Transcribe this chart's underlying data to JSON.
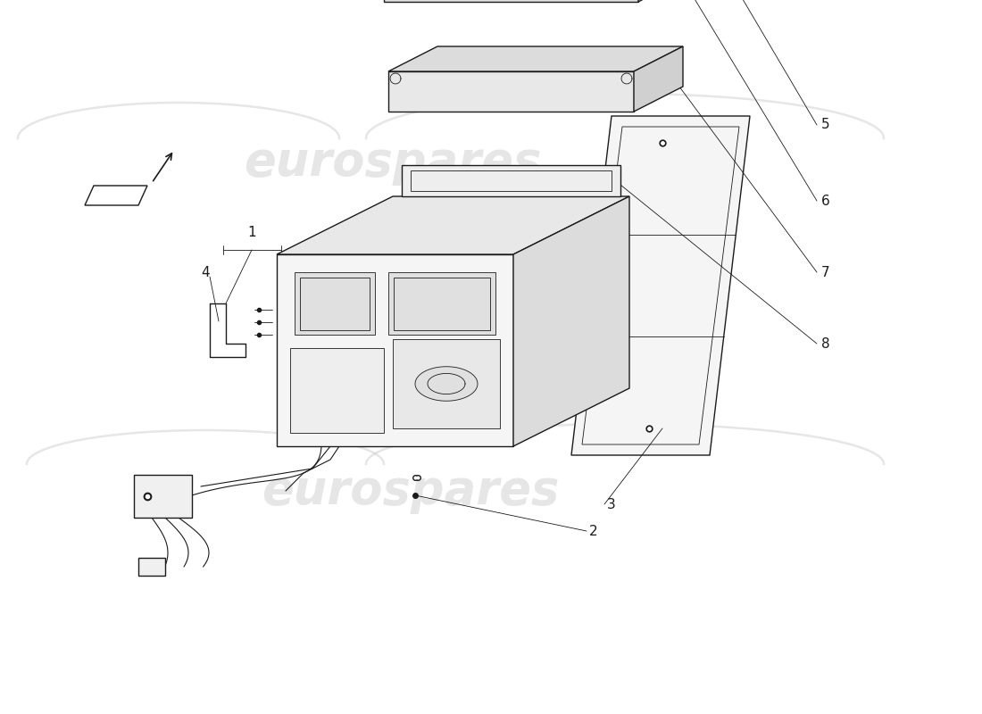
{
  "background_color": "#ffffff",
  "line_color": "#1a1a1a",
  "watermark_color": "#c8c8c8",
  "watermark_text": "eurospares",
  "watermark_alpha": 0.45,
  "figsize": [
    11.0,
    8.0
  ],
  "dpi": 100,
  "lw_main": 1.0,
  "lw_thin": 0.6,
  "lw_med": 0.8
}
